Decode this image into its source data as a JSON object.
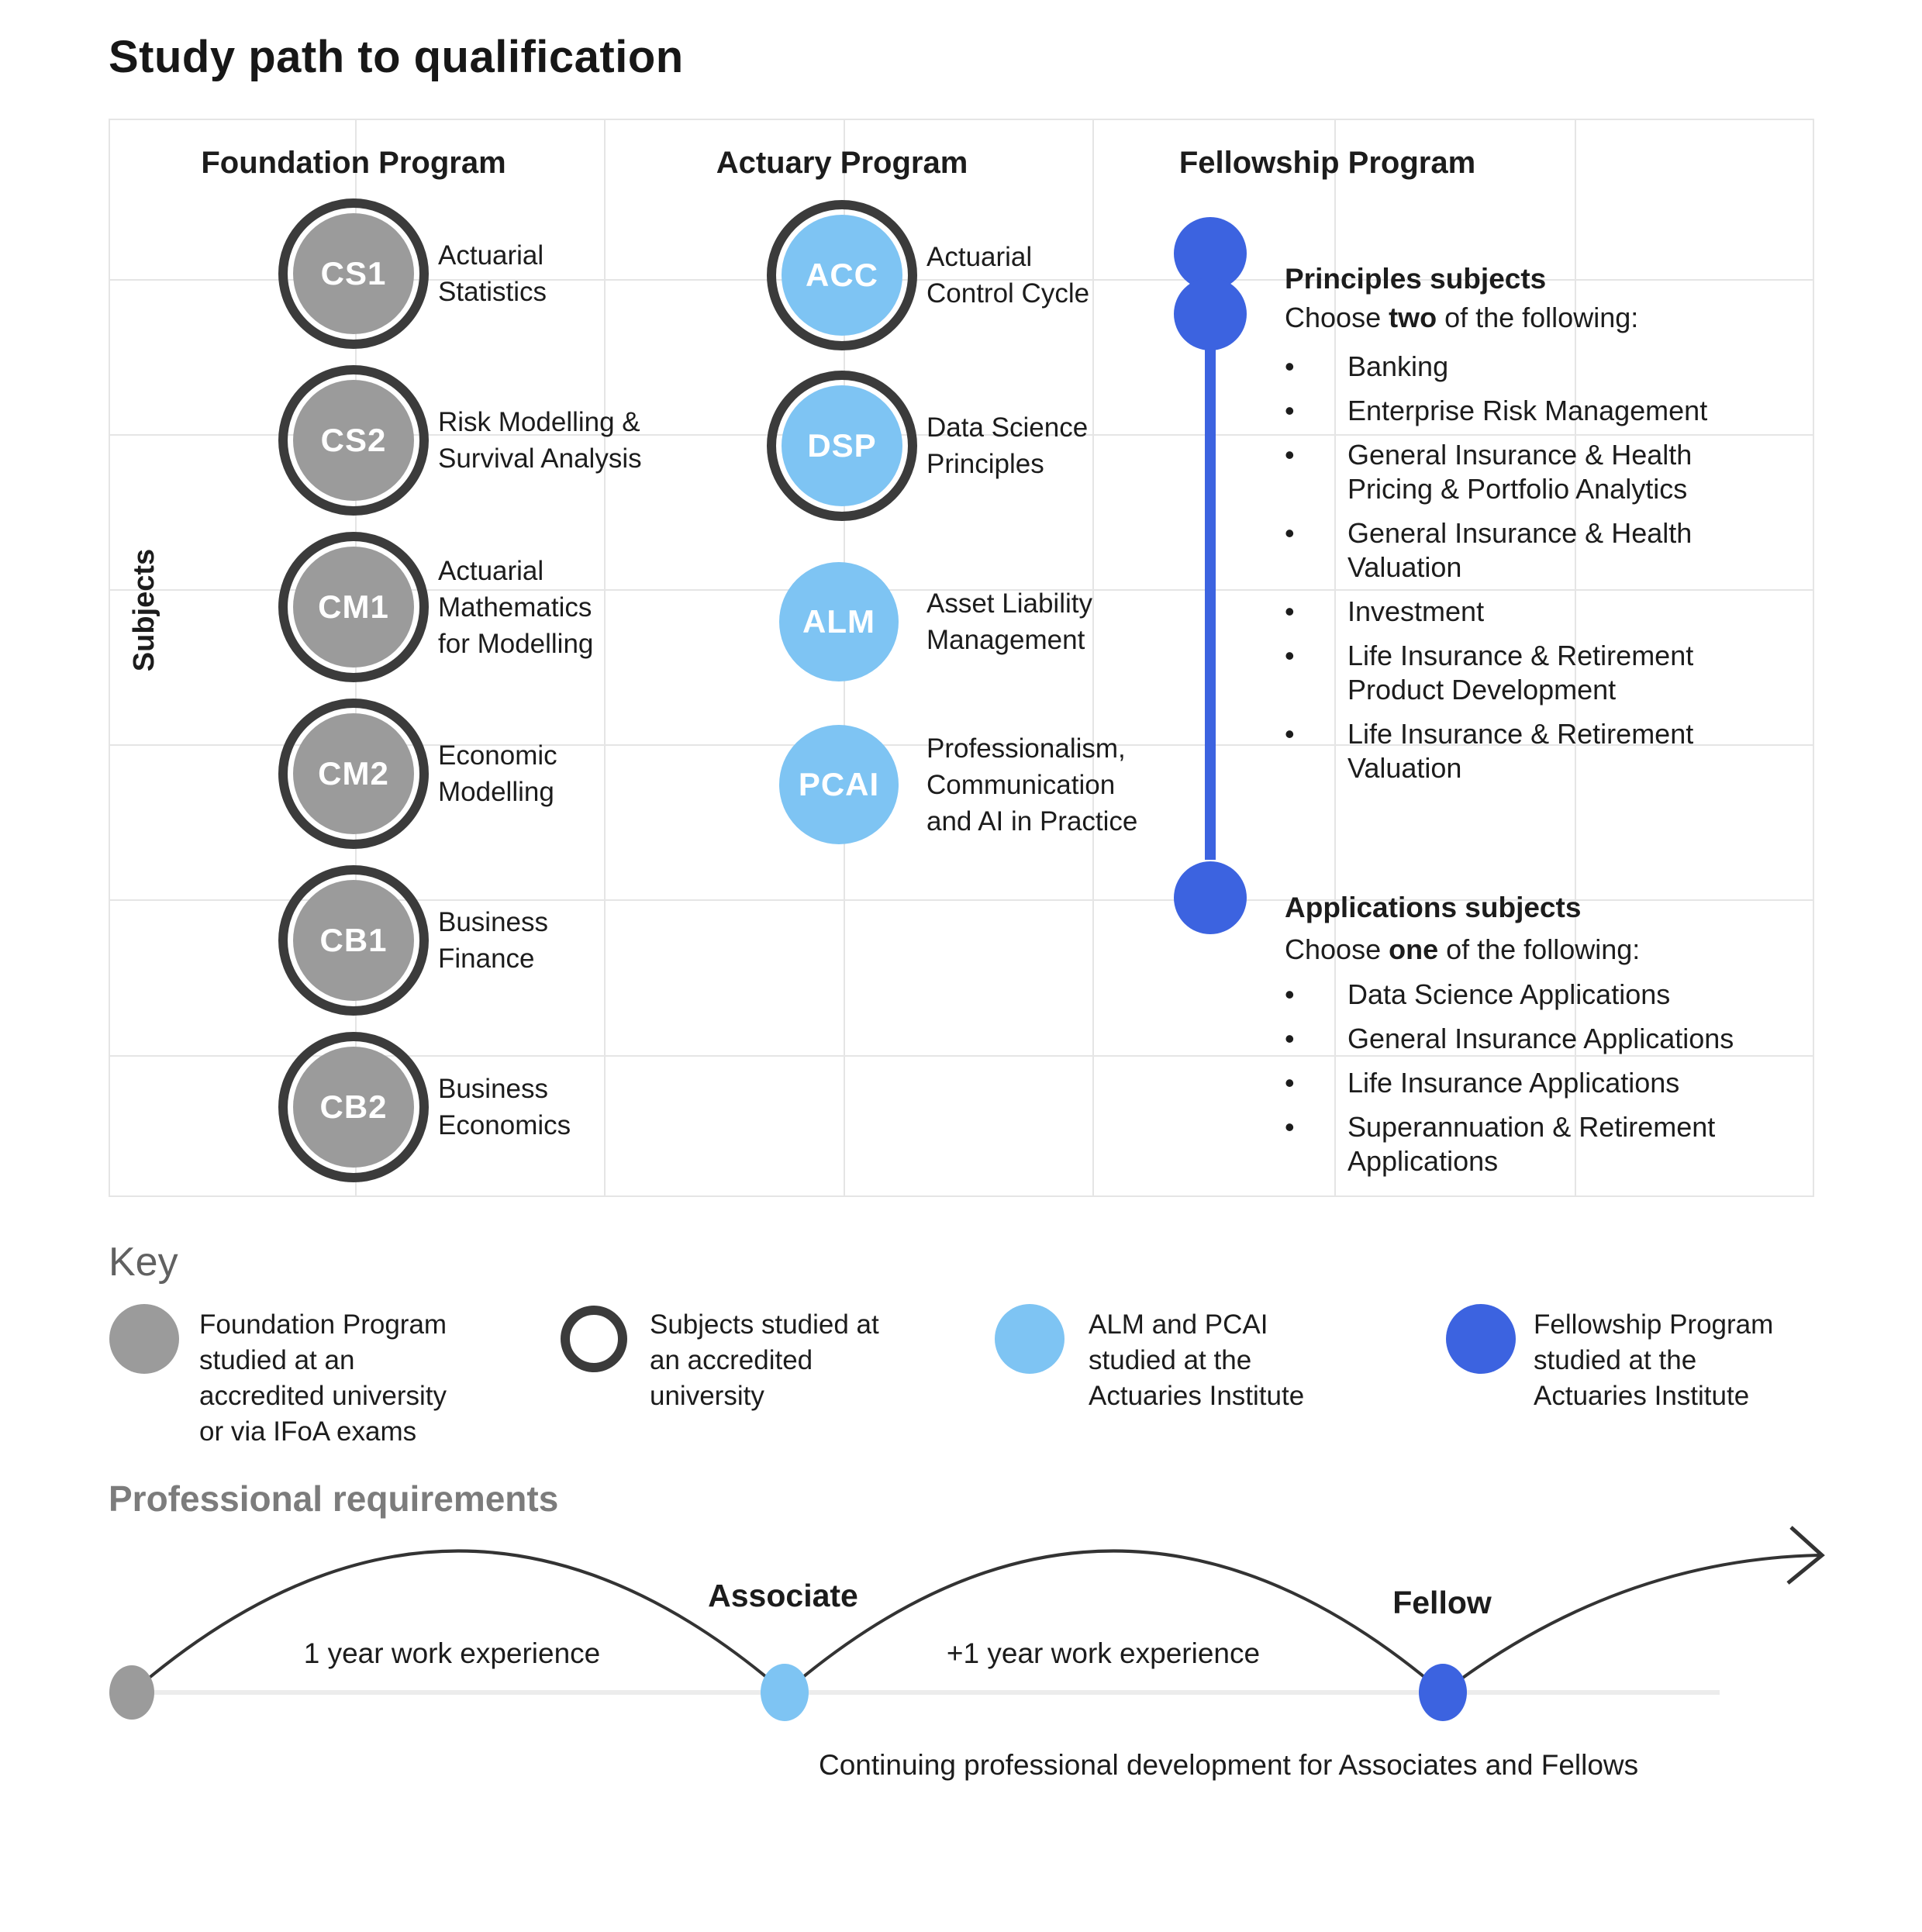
{
  "title": "Study path to qualification",
  "axis_label": "Subjects",
  "programs": {
    "foundation": {
      "header": "Foundation Program",
      "items": [
        {
          "code": "CS1",
          "label": "Actuarial\nStatistics"
        },
        {
          "code": "CS2",
          "label": "Risk Modelling &\nSurvival Analysis"
        },
        {
          "code": "CM1",
          "label": "Actuarial\nMathematics\nfor Modelling"
        },
        {
          "code": "CM2",
          "label": "Economic\nModelling"
        },
        {
          "code": "CB1",
          "label": "Business\nFinance"
        },
        {
          "code": "CB2",
          "label": "Business\nEconomics"
        }
      ]
    },
    "actuary": {
      "header": "Actuary Program",
      "items": [
        {
          "code": "ACC",
          "label": "Actuarial\nControl Cycle"
        },
        {
          "code": "DSP",
          "label": "Data Science\nPrinciples"
        },
        {
          "code": "ALM",
          "label": "Asset Liability\nManagement"
        },
        {
          "code": "PCAI",
          "label": "Professionalism,\nCommunication\nand AI in Practice"
        }
      ]
    },
    "fellowship": {
      "header": "Fellowship Program",
      "principles": {
        "heading": "Principles subjects",
        "choose_prefix": "Choose ",
        "choose_bold": "two",
        "choose_suffix": " of the following:",
        "bullet": "•",
        "options": [
          "Banking",
          "Enterprise Risk Management",
          "General Insurance & Health\nPricing & Portfolio Analytics",
          "General Insurance & Health\nValuation",
          "Investment",
          "Life Insurance & Retirement\nProduct Development",
          "Life Insurance & Retirement\nValuation"
        ]
      },
      "applications": {
        "heading": "Applications subjects",
        "choose_prefix": "Choose ",
        "choose_bold": "one",
        "choose_suffix": " of the following:",
        "bullet": "•",
        "options": [
          "Data Science Applications",
          "General Insurance Applications",
          "Life Insurance Applications",
          "Superannuation & Retirement\nApplications"
        ]
      }
    }
  },
  "key": {
    "heading": "Key",
    "items": [
      {
        "icon": "gray-circle",
        "text": "Foundation Program\nstudied at an\naccredited university\nor via IFoA exams"
      },
      {
        "icon": "ring-circle",
        "text": "Subjects studied at\nan accredited\nuniversity"
      },
      {
        "icon": "lightblue-circle",
        "text": "ALM and PCAI\nstudied at the\nActuaries Institute"
      },
      {
        "icon": "blue-circle",
        "text": "Fellowship Program\nstudied at the\nActuaries Institute"
      }
    ]
  },
  "professional": {
    "heading": "Professional requirements",
    "segment1_label": "1 year work experience",
    "milestone1": "Associate",
    "segment2_label": "+1 year work experience",
    "milestone2": "Fellow",
    "footnote": "Continuing professional development for Associates and Fellows"
  },
  "colors": {
    "foundation_gray": "#9B9B9B",
    "actuary_light_blue": "#7EC4F3",
    "fellowship_blue": "#3C63E0",
    "ring_dark": "#3B3B3B",
    "grid_line": "#E5E5E5",
    "heading_gray": "#616161",
    "text": "#1C1C1C"
  }
}
